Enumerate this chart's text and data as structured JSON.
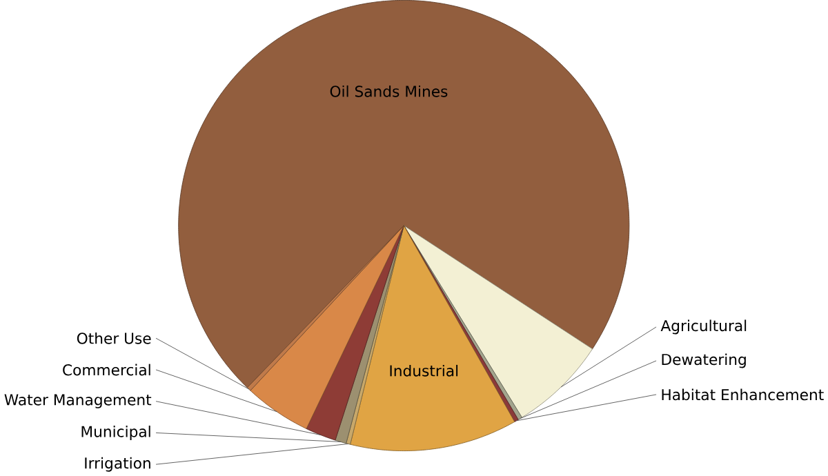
{
  "chart_data": {
    "type": "pie",
    "categories": [
      "Oil Sands Mines",
      "Agricultural",
      "Dewatering",
      "Habitat Enhancement",
      "Industrial",
      "Irrigation",
      "Municipal",
      "Water Management",
      "Commercial",
      "Other Use"
    ],
    "values": [
      72,
      7,
      0.3,
      0.3,
      12,
      0.3,
      0.8,
      2.2,
      4.8,
      0.3
    ],
    "colors": [
      "#925e3e",
      "#f3f0d4",
      "#a3a58e",
      "#8b3a3a",
      "#e0a444",
      "#c8a86a",
      "#9c9070",
      "#8e3c36",
      "#d98848",
      "#c07a4a"
    ]
  }
}
